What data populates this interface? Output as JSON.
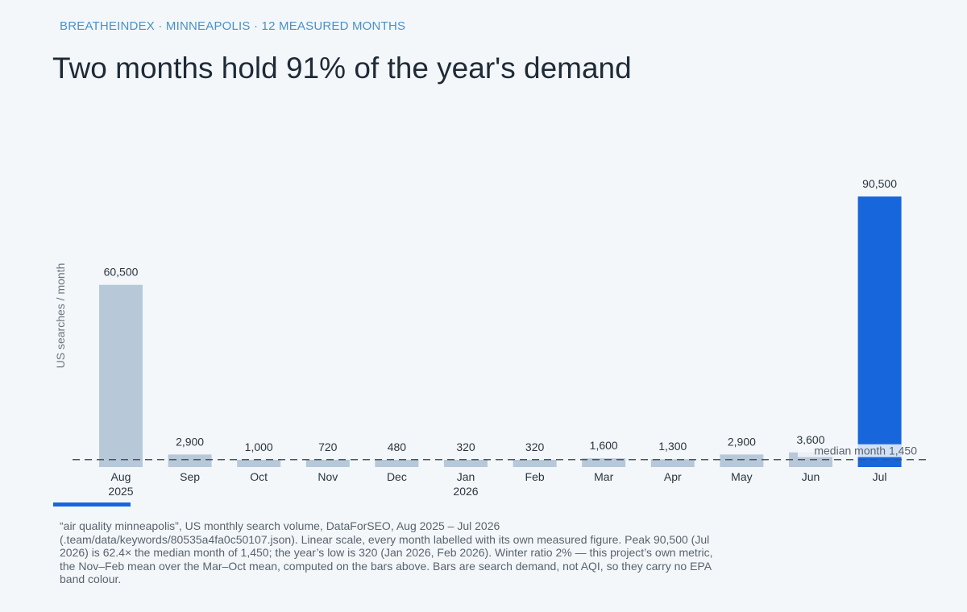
{
  "header": {
    "kicker": "BREATHEINDEX · MINNEAPOLIS · 12 MEASURED MONTHS",
    "title": "Two months hold 91% of the year's demand"
  },
  "chart_data": {
    "type": "bar",
    "ylabel": "US searches / month",
    "categories": [
      "Aug",
      "Sep",
      "Oct",
      "Nov",
      "Dec",
      "Jan",
      "Feb",
      "Mar",
      "Apr",
      "May",
      "Jun",
      "Jul"
    ],
    "year_labels": [
      "2025",
      "",
      "",
      "",
      "",
      "2026",
      "",
      "",
      "",
      "",
      "",
      ""
    ],
    "values": [
      60500,
      2900,
      1000,
      720,
      480,
      320,
      320,
      1600,
      1300,
      2900,
      3600,
      90500
    ],
    "value_labels": [
      "60,500",
      "2,900",
      "1,000",
      "720",
      "480",
      "320",
      "320",
      "1,600",
      "1,300",
      "2,900",
      "3,600",
      "90,500"
    ],
    "highlight": [
      false,
      false,
      false,
      false,
      false,
      false,
      false,
      false,
      false,
      false,
      false,
      true
    ],
    "median": {
      "value": 1450,
      "label": "median month",
      "value_label": "1,450"
    },
    "ylim": [
      0,
      90500
    ],
    "scale": "linear",
    "grid": false,
    "legend": "none",
    "colors": {
      "bar": "#b7c8d9",
      "highlight": "#1866dc",
      "median_line": "#4a5560"
    }
  },
  "footer": {
    "caption": "“air quality minneapolis”, US monthly search volume, DataForSEO, Aug 2025 – Jul 2026 (.team/data/keywords/80535a4fa0c50107.json). Linear scale, every month labelled with its own measured figure. Peak 90,500 (Jul 2026) is 62.4× the median month of 1,450; the year’s low is 320 (Jan 2026, Feb 2026). Winter ratio 2% — this project’s own metric, the Nov–Feb mean over the Mar–Oct mean, computed on the bars above. Bars are search demand, not AQI, so they carry no EPA band colour."
  }
}
